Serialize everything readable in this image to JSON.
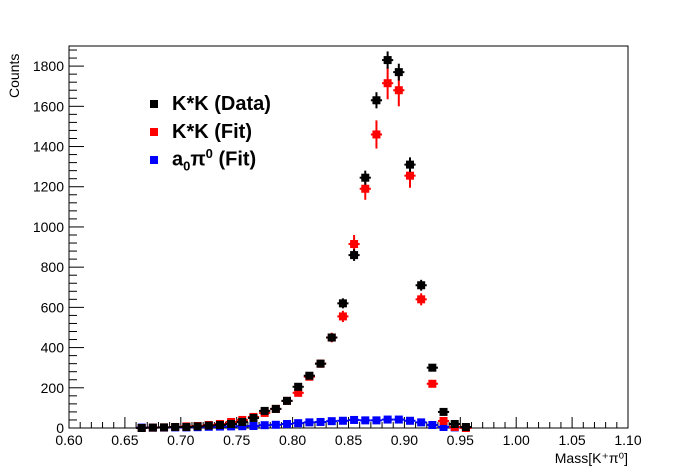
{
  "chart_data": {
    "type": "scatter",
    "title": "",
    "xlabel": "Mass[K⁺π⁰]",
    "ylabel": "Counts",
    "xlim": [
      0.6,
      1.1
    ],
    "ylim": [
      0,
      1900
    ],
    "x_ticks": [
      "0.60",
      "0.65",
      "0.70",
      "0.75",
      "0.80",
      "0.85",
      "0.90",
      "0.95",
      "1.00",
      "1.05",
      "1.10"
    ],
    "y_ticks": [
      "0",
      "200",
      "400",
      "600",
      "800",
      "1000",
      "1200",
      "1400",
      "1600",
      "1800"
    ],
    "grid": false,
    "legend_placement": "top-left",
    "bin_width": 0.01,
    "series": [
      {
        "name": "K*K (Data)",
        "color": "#000000",
        "x": [
          0.665,
          0.675,
          0.685,
          0.695,
          0.705,
          0.715,
          0.725,
          0.735,
          0.745,
          0.755,
          0.765,
          0.775,
          0.785,
          0.795,
          0.805,
          0.815,
          0.825,
          0.835,
          0.845,
          0.855,
          0.865,
          0.875,
          0.885,
          0.895,
          0.905,
          0.915,
          0.925,
          0.935,
          0.945,
          0.955
        ],
        "values": [
          0,
          2,
          3,
          5,
          5,
          8,
          12,
          15,
          20,
          30,
          50,
          85,
          95,
          135,
          205,
          260,
          320,
          450,
          620,
          860,
          1245,
          1630,
          1830,
          1770,
          1310,
          710,
          300,
          80,
          20,
          5
        ],
        "yerr": [
          0,
          1,
          2,
          2,
          2,
          3,
          3,
          4,
          4,
          5,
          7,
          9,
          10,
          12,
          14,
          16,
          18,
          21,
          25,
          29,
          35,
          40,
          43,
          42,
          36,
          27,
          17,
          9,
          4,
          2
        ]
      },
      {
        "name": "K*K (Fit)",
        "color": "#ff0000",
        "x": [
          0.665,
          0.675,
          0.685,
          0.695,
          0.705,
          0.715,
          0.725,
          0.735,
          0.745,
          0.755,
          0.765,
          0.775,
          0.785,
          0.795,
          0.805,
          0.815,
          0.825,
          0.835,
          0.845,
          0.855,
          0.865,
          0.875,
          0.885,
          0.895,
          0.905,
          0.915,
          0.925,
          0.935,
          0.945,
          0.955
        ],
        "values": [
          0,
          2,
          3,
          5,
          8,
          10,
          15,
          20,
          30,
          40,
          55,
          75,
          95,
          135,
          175,
          255,
          320,
          450,
          555,
          915,
          1190,
          1460,
          1715,
          1680,
          1255,
          640,
          220,
          35,
          5,
          0
        ],
        "yerr": [
          0,
          1,
          2,
          2,
          3,
          3,
          4,
          5,
          6,
          7,
          8,
          10,
          11,
          13,
          15,
          18,
          20,
          24,
          28,
          45,
          55,
          70,
          80,
          80,
          60,
          30,
          15,
          6,
          2,
          0
        ]
      },
      {
        "name": "a0π0 (Fit)",
        "color": "#0000ff",
        "x": [
          0.665,
          0.675,
          0.685,
          0.695,
          0.705,
          0.715,
          0.725,
          0.735,
          0.745,
          0.755,
          0.765,
          0.775,
          0.785,
          0.795,
          0.805,
          0.815,
          0.825,
          0.835,
          0.845,
          0.855,
          0.865,
          0.875,
          0.885,
          0.895,
          0.905,
          0.915,
          0.925,
          0.935,
          0.945
        ],
        "values": [
          2,
          2,
          2,
          3,
          3,
          4,
          6,
          7,
          8,
          9,
          10,
          14,
          16,
          20,
          24,
          28,
          30,
          34,
          36,
          40,
          38,
          38,
          42,
          42,
          36,
          28,
          15,
          5,
          3
        ],
        "yerr": [
          0,
          0,
          0,
          0,
          0,
          0,
          0,
          0,
          0,
          0,
          0,
          0,
          0,
          0,
          0,
          0,
          0,
          0,
          0,
          0,
          0,
          0,
          0,
          0,
          0,
          0,
          0,
          0,
          0
        ]
      }
    ]
  },
  "legend": {
    "items": [
      {
        "label": "K*K (Data)",
        "color": "#000000"
      },
      {
        "label": "K*K (Fit)",
        "color": "#ff0000"
      },
      {
        "base": "a",
        "sub": "0",
        "mid": "π",
        "sup": "0",
        "tail": " (Fit)",
        "color": "#0000ff"
      }
    ]
  }
}
